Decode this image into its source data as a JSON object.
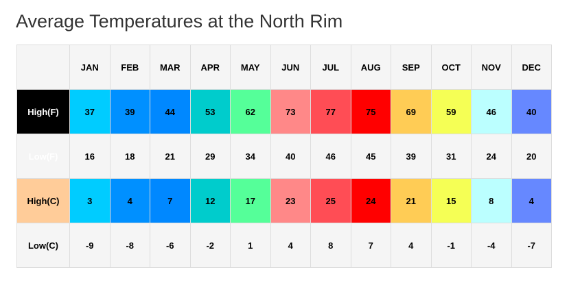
{
  "title": "Average Temperatures at the North Rim",
  "table": {
    "months": [
      "JAN",
      "FEB",
      "MAR",
      "APR",
      "MAY",
      "JUN",
      "JUL",
      "AUG",
      "SEP",
      "OCT",
      "NOV",
      "DEC"
    ],
    "month_colors": [
      "#00ccff",
      "#0090ff",
      "#0088ff",
      "#00cccc",
      "#55ff99",
      "#ff8888",
      "#ff4d55",
      "#ff0000",
      "#ffcc55",
      "#f5ff55",
      "#bbffff",
      "#6688ff"
    ],
    "rows": [
      {
        "label": "High(F)",
        "values": [
          37,
          39,
          44,
          53,
          62,
          73,
          77,
          75,
          69,
          59,
          46,
          40
        ]
      },
      {
        "label": "Low(F)",
        "values": [
          16,
          18,
          21,
          29,
          34,
          40,
          46,
          45,
          39,
          31,
          24,
          20
        ]
      },
      {
        "label": "High(C)",
        "values": [
          3,
          4,
          7,
          12,
          17,
          23,
          25,
          24,
          21,
          15,
          8,
          4
        ]
      },
      {
        "label": "Low(C)",
        "values": [
          -9,
          -8,
          -6,
          -2,
          1,
          4,
          8,
          7,
          4,
          -1,
          -4,
          -7
        ]
      }
    ]
  }
}
